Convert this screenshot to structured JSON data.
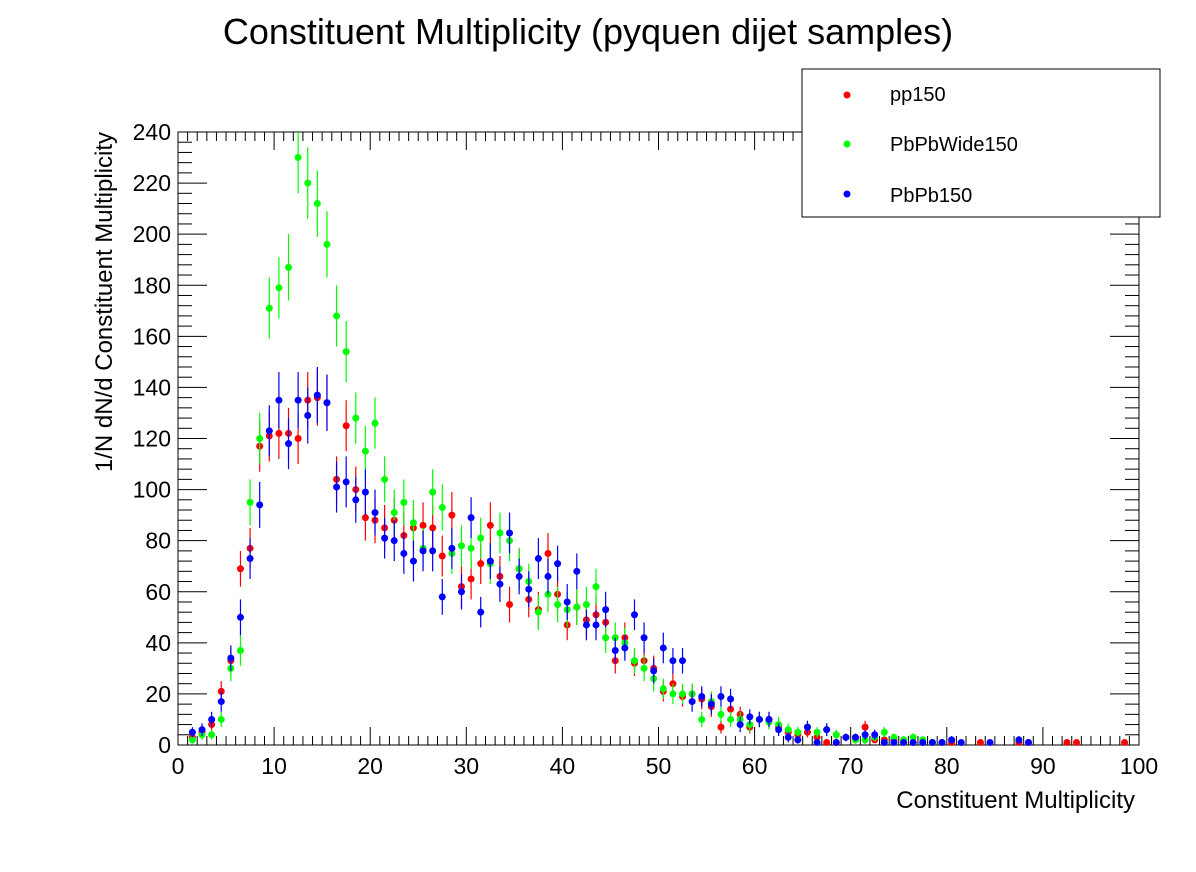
{
  "chart_data": {
    "type": "scatter",
    "title": "Constituent Multiplicity (pyquen dijet samples)",
    "xlabel": "Constituent Multiplicity",
    "ylabel": "1/N dN/d Constituent Multiplicity",
    "xlim": [
      0,
      100
    ],
    "ylim": [
      0,
      240
    ],
    "x_ticks": [
      "0",
      "10",
      "20",
      "30",
      "40",
      "50",
      "60",
      "70",
      "80",
      "90",
      "100"
    ],
    "y_ticks": [
      "0",
      "20",
      "40",
      "60",
      "80",
      "100",
      "120",
      "140",
      "160",
      "180",
      "200",
      "220",
      "240"
    ],
    "grid": false,
    "legend_position": "top-right",
    "series": [
      {
        "name": "pp150",
        "color": "#ff0000",
        "x": [
          1.5,
          2.5,
          3.5,
          4.5,
          5.5,
          6.5,
          7.5,
          8.5,
          9.5,
          10.5,
          11.5,
          12.5,
          13.5,
          14.5,
          15.5,
          16.5,
          17.5,
          18.5,
          19.5,
          20.5,
          21.5,
          22.5,
          23.5,
          24.5,
          25.5,
          26.5,
          27.5,
          28.5,
          29.5,
          30.5,
          31.5,
          32.5,
          33.5,
          34.5,
          35.5,
          36.5,
          37.5,
          38.5,
          39.5,
          40.5,
          41.5,
          42.5,
          43.5,
          44.5,
          45.5,
          46.5,
          47.5,
          48.5,
          49.5,
          50.5,
          51.5,
          52.5,
          53.5,
          54.5,
          55.5,
          56.5,
          57.5,
          58.5,
          59.5,
          60.5,
          61.5,
          62.5,
          63.5,
          64.5,
          65.5,
          66.5,
          67.5,
          68.5,
          69.5,
          70.5,
          71.5,
          72.5,
          73.5,
          74.5,
          75.5,
          76.5,
          77.5,
          78.5,
          79.5,
          80.5,
          83.5,
          87.5,
          88.5,
          92.5,
          93.5,
          98.5
        ],
        "y": [
          3,
          5,
          8,
          21,
          33,
          69,
          77,
          117,
          121,
          122,
          122,
          120,
          135,
          136,
          134,
          104,
          125,
          100,
          89,
          88,
          85,
          88,
          82,
          85,
          86,
          85,
          74,
          90,
          62,
          65,
          71,
          86,
          66,
          55,
          69,
          57,
          53,
          75,
          59,
          47,
          54,
          49,
          51,
          48,
          33,
          42,
          32,
          33,
          30,
          21,
          24,
          19,
          20,
          18,
          15,
          7,
          14,
          12,
          7,
          10,
          10,
          7,
          5,
          4,
          5,
          3,
          1,
          1,
          3,
          3,
          7,
          2,
          2,
          2,
          2,
          1,
          1,
          1,
          1,
          1,
          1,
          1,
          1,
          1,
          1,
          1
        ],
        "err": [
          2,
          2.5,
          3,
          4,
          5,
          7,
          8,
          10,
          10,
          10,
          10,
          10,
          11,
          11,
          11,
          9,
          10,
          9,
          9,
          9,
          9,
          9,
          9,
          9,
          9,
          9,
          8,
          9,
          8,
          8,
          8,
          9,
          8,
          7,
          8,
          7,
          7,
          8,
          7,
          6,
          7,
          7,
          7,
          7,
          5,
          6,
          5,
          5,
          5,
          4,
          5,
          4,
          4,
          4,
          4,
          2.5,
          3,
          3,
          2.5,
          3,
          3,
          2.5,
          2,
          2,
          2,
          1.5,
          1,
          1,
          1.5,
          1.5,
          2.5,
          1,
          1,
          1,
          1,
          1,
          1,
          1,
          1,
          1,
          1,
          1,
          1,
          1,
          1,
          1
        ]
      },
      {
        "name": "PbPbWide150",
        "color": "#00ff00",
        "x": [
          1.5,
          2.5,
          3.5,
          4.5,
          5.5,
          6.5,
          7.5,
          8.5,
          9.5,
          10.5,
          11.5,
          12.5,
          13.5,
          14.5,
          15.5,
          16.5,
          17.5,
          18.5,
          19.5,
          20.5,
          21.5,
          22.5,
          23.5,
          24.5,
          25.5,
          26.5,
          27.5,
          28.5,
          29.5,
          30.5,
          31.5,
          32.5,
          33.5,
          34.5,
          35.5,
          36.5,
          37.5,
          38.5,
          39.5,
          40.5,
          41.5,
          42.5,
          43.5,
          44.5,
          45.5,
          46.5,
          47.5,
          48.5,
          49.5,
          50.5,
          51.5,
          52.5,
          53.5,
          54.5,
          55.5,
          56.5,
          57.5,
          58.5,
          59.5,
          60.5,
          61.5,
          62.5,
          63.5,
          64.5,
          65.5,
          66.5,
          67.5,
          68.5,
          69.5,
          70.5,
          71.5,
          72.5,
          73.5,
          74.5,
          75.5,
          76.5,
          77.5,
          78.5
        ],
        "y": [
          2,
          4,
          4,
          10,
          30,
          37,
          95,
          120,
          171,
          179,
          187,
          230,
          220,
          212,
          196,
          168,
          154,
          128,
          115,
          126,
          104,
          91,
          95,
          87,
          77,
          99,
          93,
          75,
          78,
          77,
          81,
          71,
          83,
          80,
          69,
          64,
          52,
          59,
          55,
          53,
          54,
          55,
          62,
          42,
          42,
          40,
          33,
          30,
          26,
          22,
          20,
          20,
          20,
          10,
          17,
          12,
          10,
          10,
          8,
          10,
          9,
          8,
          6,
          5,
          7,
          5,
          6,
          4,
          3,
          2,
          2,
          3,
          5,
          3,
          2,
          3,
          2,
          1
        ],
        "err": [
          1.5,
          2,
          2,
          3,
          5,
          6,
          9,
          10,
          12,
          12,
          13,
          14,
          14,
          13,
          13,
          12,
          12,
          10,
          10,
          10,
          9,
          9,
          9,
          9,
          8,
          9,
          9,
          8,
          8,
          8,
          8,
          8,
          8,
          8,
          8,
          7,
          7,
          7,
          7,
          7,
          7,
          7,
          7,
          6,
          6,
          6,
          5,
          5,
          5,
          4,
          4,
          4,
          4,
          3,
          4,
          3,
          3,
          3,
          3,
          3,
          3,
          3,
          2.5,
          2,
          2.5,
          2,
          2.5,
          2,
          1.5,
          1.5,
          1.5,
          1.5,
          2,
          1.5,
          1.5,
          1.5,
          1.5,
          1
        ]
      },
      {
        "name": "PbPb150",
        "color": "#0000ff",
        "x": [
          1.5,
          2.5,
          3.5,
          4.5,
          5.5,
          6.5,
          7.5,
          8.5,
          9.5,
          10.5,
          11.5,
          12.5,
          13.5,
          14.5,
          15.5,
          16.5,
          17.5,
          18.5,
          19.5,
          20.5,
          21.5,
          22.5,
          23.5,
          24.5,
          25.5,
          26.5,
          27.5,
          28.5,
          29.5,
          30.5,
          31.5,
          32.5,
          33.5,
          34.5,
          35.5,
          36.5,
          37.5,
          38.5,
          39.5,
          40.5,
          41.5,
          42.5,
          43.5,
          44.5,
          45.5,
          46.5,
          47.5,
          48.5,
          49.5,
          50.5,
          51.5,
          52.5,
          53.5,
          54.5,
          55.5,
          56.5,
          57.5,
          58.5,
          59.5,
          60.5,
          61.5,
          62.5,
          63.5,
          64.5,
          65.5,
          66.5,
          67.5,
          68.5,
          69.5,
          70.5,
          71.5,
          72.5,
          73.5,
          74.5,
          75.5,
          76.5,
          77.5,
          78.5,
          79.5,
          80.5,
          81.5,
          84.5,
          87.5,
          88.5
        ],
        "y": [
          5,
          6,
          10,
          17,
          34,
          50,
          73,
          94,
          123,
          135,
          118,
          135,
          129,
          137,
          134,
          101,
          103,
          96,
          99,
          91,
          81,
          80,
          75,
          72,
          76,
          76,
          58,
          77,
          60,
          89,
          52,
          72,
          63,
          83,
          66,
          61,
          73,
          66,
          71,
          56,
          68,
          47,
          47,
          53,
          37,
          38,
          51,
          42,
          29,
          38,
          33,
          33,
          17,
          19,
          16,
          19,
          18,
          8,
          11,
          10,
          10,
          6,
          3,
          2,
          7,
          1,
          6,
          1,
          3,
          3,
          4,
          4,
          1,
          1,
          1,
          1,
          1,
          1,
          1,
          2,
          1,
          1,
          2,
          1
        ],
        "err": [
          2,
          2.5,
          3,
          4,
          5,
          7,
          8,
          9,
          10,
          11,
          10,
          11,
          11,
          11,
          11,
          10,
          10,
          9,
          9,
          9,
          8,
          8,
          8,
          8,
          8,
          8,
          7,
          8,
          7,
          8,
          6,
          7,
          7,
          8,
          7,
          7,
          8,
          7,
          7,
          7,
          7,
          6,
          6,
          7,
          5,
          5,
          6,
          6,
          5,
          6,
          5,
          5,
          4,
          4,
          4,
          4,
          4,
          3,
          3,
          3,
          3,
          2.5,
          2,
          1.5,
          2.5,
          1,
          2.5,
          1,
          1.5,
          1.5,
          2,
          2,
          1,
          1,
          1,
          1,
          1,
          1,
          1,
          1.5,
          1,
          1,
          1.5,
          1
        ]
      }
    ]
  }
}
